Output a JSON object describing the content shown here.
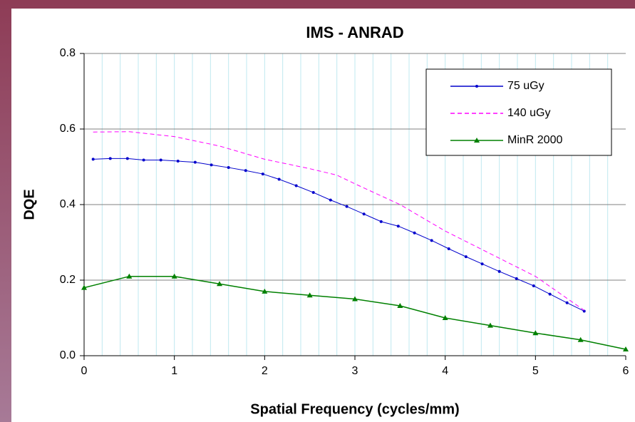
{
  "chart_data": {
    "type": "line",
    "title": "IMS - ANRAD",
    "xlabel": "Spatial Frequency (cycles/mm)",
    "ylabel": "DQE",
    "xlim": [
      0,
      6
    ],
    "xticks": [
      0,
      1,
      2,
      3,
      4,
      5,
      6
    ],
    "ylim": [
      0,
      0.8
    ],
    "yticks": [
      {
        "value": 0,
        "label": "0.0"
      },
      0.2,
      0.4,
      0.6,
      0.8
    ],
    "grid": true,
    "minor_grid_x": 0.2,
    "legend": "upper right",
    "series": [
      {
        "name": "75 uGy",
        "color": "#0000cc",
        "marker": "circle",
        "dash": false,
        "x": [
          0.1,
          0.29,
          0.48,
          0.66,
          0.85,
          1.04,
          1.23,
          1.41,
          1.6,
          1.79,
          1.98,
          2.16,
          2.35,
          2.54,
          2.73,
          2.91,
          3.1,
          3.29,
          3.48,
          3.66,
          3.85,
          4.04,
          4.23,
          4.41,
          4.6,
          4.79,
          4.98,
          5.16,
          5.35,
          5.54
        ],
        "values": [
          0.52,
          0.522,
          0.522,
          0.518,
          0.518,
          0.515,
          0.512,
          0.505,
          0.498,
          0.49,
          0.481,
          0.467,
          0.45,
          0.432,
          0.412,
          0.395,
          0.375,
          0.355,
          0.343,
          0.325,
          0.305,
          0.283,
          0.262,
          0.243,
          0.223,
          0.204,
          0.185,
          0.163,
          0.14,
          0.118
        ]
      },
      {
        "name": "140 uGy",
        "color": "#ff00ff",
        "marker": "none",
        "dash": true,
        "x": [
          0.1,
          0.5,
          1,
          1.5,
          2,
          2.5,
          2.8,
          3,
          3.5,
          4,
          4.5,
          5,
          5.54
        ],
        "values": [
          0.592,
          0.593,
          0.58,
          0.555,
          0.52,
          0.495,
          0.478,
          0.455,
          0.4,
          0.33,
          0.27,
          0.21,
          0.12
        ]
      },
      {
        "name": "MinR 2000",
        "color": "#008000",
        "marker": "triangle",
        "dash": false,
        "x": [
          0,
          0.5,
          1,
          1.5,
          2,
          2.5,
          3,
          3.5,
          4,
          4.5,
          5,
          5.5,
          6
        ],
        "values": [
          0.18,
          0.21,
          0.21,
          0.19,
          0.17,
          0.16,
          0.15,
          0.132,
          0.1,
          0.08,
          0.06,
          0.042,
          0.017
        ]
      }
    ]
  }
}
